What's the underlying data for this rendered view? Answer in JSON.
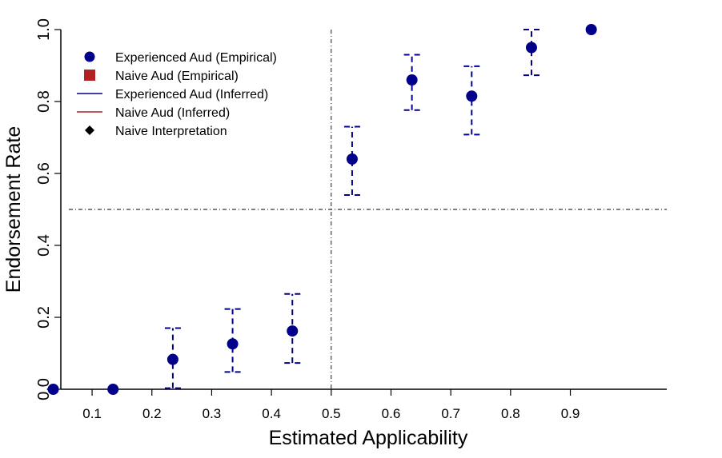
{
  "colors": {
    "experienced": "#00008B",
    "naive": "#B22222",
    "naive_interp": "#000000",
    "axis": "#000000"
  },
  "chart_data": {
    "type": "scatter",
    "xlabel": "Estimated Applicability",
    "ylabel": "Endorsement Rate",
    "xlim": [
      0.0,
      1.0
    ],
    "ylim": [
      0.0,
      1.0
    ],
    "x_ticks": [
      "0.1",
      "0.2",
      "0.3",
      "0.4",
      "0.5",
      "0.6",
      "0.7",
      "0.8",
      "0.9"
    ],
    "y_ticks": [
      "0.0",
      "0.2",
      "0.4",
      "0.6",
      "0.8",
      "1.0"
    ],
    "reference_lines": {
      "vertical_x": 0.5,
      "horizontal_y": 0.5
    },
    "legend": {
      "placement": "top-left",
      "entries": [
        {
          "label": "Experienced Aud (Empirical)",
          "symbol": "circle",
          "color_key": "experienced"
        },
        {
          "label": "Naive Aud (Empirical)",
          "symbol": "square",
          "color_key": "naive"
        },
        {
          "label": "Experienced Aud (Inferred)",
          "symbol": "line",
          "color_key": "experienced"
        },
        {
          "label": "Naive Aud (Inferred)",
          "symbol": "line",
          "color_key": "naive"
        },
        {
          "label": "Naive Interpretation",
          "symbol": "diamond",
          "color_key": "naive_interp"
        }
      ]
    },
    "series": [
      {
        "name": "Experienced Aud (Empirical)",
        "points": [
          {
            "x": 0.035,
            "y": 0.0,
            "lo": null,
            "hi": null
          },
          {
            "x": 0.135,
            "y": 0.0,
            "lo": null,
            "hi": null
          },
          {
            "x": 0.235,
            "y": 0.083,
            "lo": 0.003,
            "hi": 0.17
          },
          {
            "x": 0.335,
            "y": 0.126,
            "lo": 0.048,
            "hi": 0.223
          },
          {
            "x": 0.435,
            "y": 0.162,
            "lo": 0.073,
            "hi": 0.265
          },
          {
            "x": 0.535,
            "y": 0.64,
            "lo": 0.54,
            "hi": 0.73
          },
          {
            "x": 0.635,
            "y": 0.86,
            "lo": 0.776,
            "hi": 0.93
          },
          {
            "x": 0.735,
            "y": 0.815,
            "lo": 0.708,
            "hi": 0.898
          },
          {
            "x": 0.835,
            "y": 0.95,
            "lo": 0.873,
            "hi": 1.0
          },
          {
            "x": 0.935,
            "y": 1.0,
            "lo": null,
            "hi": null
          }
        ]
      }
    ]
  }
}
